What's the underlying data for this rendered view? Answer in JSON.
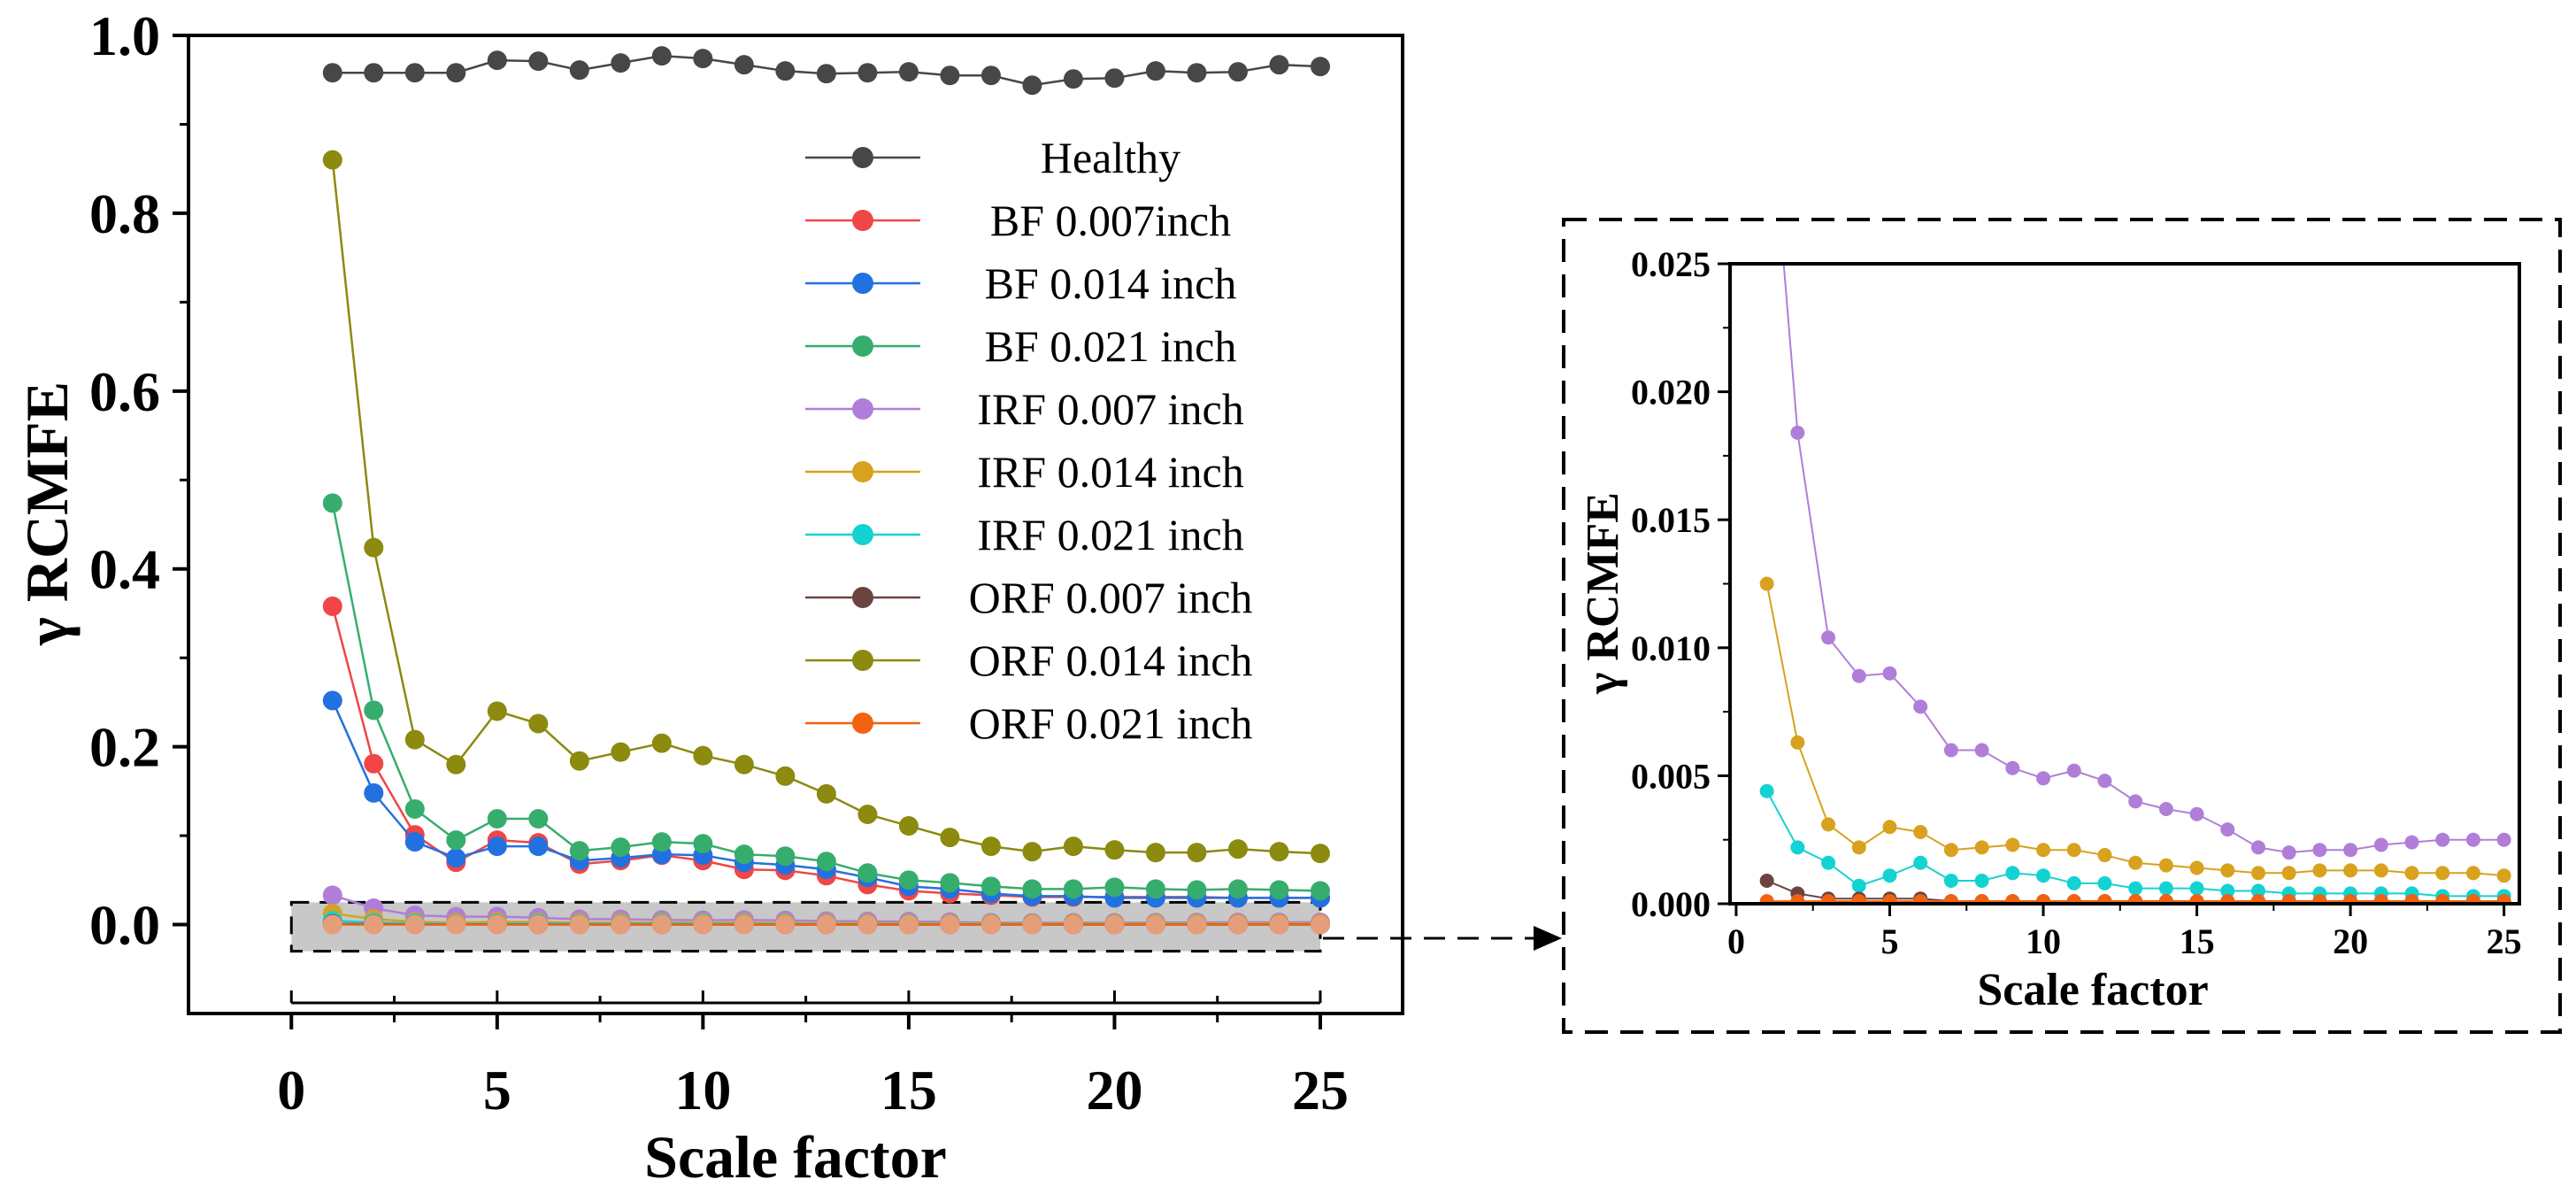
{
  "chart_data": [
    {
      "type": "line",
      "title": "",
      "xlabel": "Scale factor",
      "ylabel": "γ RCMFE",
      "xlim": [
        -2.5,
        27
      ],
      "ylim": [
        -0.1,
        1.0
      ],
      "xticks": [
        "0",
        "5",
        "10",
        "15",
        "20",
        "25"
      ],
      "yticks": [
        "0.0",
        "0.2",
        "0.4",
        "0.6",
        "0.8",
        "1.0"
      ],
      "legend_position": "top-right",
      "x": [
        1,
        2,
        3,
        4,
        5,
        6,
        7,
        8,
        9,
        10,
        11,
        12,
        13,
        14,
        15,
        16,
        17,
        18,
        19,
        20,
        21,
        22,
        23,
        24,
        25
      ],
      "series": [
        {
          "name": "Healthy",
          "color": "#474747",
          "values": [
            0.958,
            0.958,
            0.958,
            0.958,
            0.972,
            0.971,
            0.961,
            0.969,
            0.977,
            0.974,
            0.967,
            0.96,
            0.957,
            0.958,
            0.959,
            0.955,
            0.955,
            0.944,
            0.951,
            0.952,
            0.96,
            0.958,
            0.959,
            0.967,
            0.965
          ]
        },
        {
          "name": "BF 0.007inch",
          "color": "#f04646",
          "values": [
            0.358,
            0.181,
            0.101,
            0.07,
            0.095,
            0.092,
            0.068,
            0.072,
            0.078,
            0.072,
            0.062,
            0.061,
            0.055,
            0.045,
            0.038,
            0.035,
            0.033,
            0.031,
            0.031,
            0.031,
            0.031,
            0.031,
            0.03,
            0.03,
            0.03
          ]
        },
        {
          "name": "BF 0.014 inch",
          "color": "#2271e0",
          "values": [
            0.252,
            0.148,
            0.093,
            0.075,
            0.088,
            0.088,
            0.072,
            0.075,
            0.079,
            0.078,
            0.07,
            0.067,
            0.062,
            0.053,
            0.043,
            0.04,
            0.035,
            0.032,
            0.032,
            0.03,
            0.03,
            0.03,
            0.03,
            0.03,
            0.03
          ]
        },
        {
          "name": "BF 0.021 inch",
          "color": "#36ad6d",
          "values": [
            0.474,
            0.241,
            0.13,
            0.095,
            0.119,
            0.119,
            0.083,
            0.087,
            0.093,
            0.091,
            0.079,
            0.077,
            0.071,
            0.058,
            0.05,
            0.047,
            0.043,
            0.04,
            0.04,
            0.042,
            0.04,
            0.039,
            0.04,
            0.039,
            0.038
          ]
        },
        {
          "name": "IRF 0.007 inch",
          "color": "#b07ed8",
          "values": [
            0.033,
            0.0184,
            0.0104,
            0.0089,
            0.009,
            0.0077,
            0.006,
            0.006,
            0.0053,
            0.0049,
            0.0052,
            0.0048,
            0.004,
            0.0037,
            0.0035,
            0.0029,
            0.0022,
            0.002,
            0.0021,
            0.0021,
            0.0023,
            0.0024,
            0.0025,
            0.0025,
            0.0025
          ]
        },
        {
          "name": "IRF 0.014 inch",
          "color": "#d8a21e",
          "values": [
            0.0125,
            0.0063,
            0.0031,
            0.0022,
            0.003,
            0.0028,
            0.0021,
            0.0022,
            0.0023,
            0.0021,
            0.0021,
            0.0019,
            0.0016,
            0.0015,
            0.0014,
            0.0013,
            0.0012,
            0.0012,
            0.0013,
            0.0013,
            0.0013,
            0.0012,
            0.0012,
            0.0012,
            0.0011
          ]
        },
        {
          "name": "IRF 0.021 inch",
          "color": "#14d2d2",
          "values": [
            0.0044,
            0.0022,
            0.0016,
            0.0007,
            0.0011,
            0.0016,
            0.0009,
            0.0009,
            0.0012,
            0.0011,
            0.0008,
            0.0008,
            0.0006,
            0.0006,
            0.0006,
            0.0005,
            0.0005,
            0.0004,
            0.0004,
            0.0004,
            0.0004,
            0.0004,
            0.0003,
            0.0003,
            0.0003
          ]
        },
        {
          "name": "ORF 0.007 inch",
          "color": "#6b4440",
          "values": [
            0.0009,
            0.0004,
            0.0002,
            0.0002,
            0.0002,
            0.0002,
            0.0001,
            0.0001,
            0.0001,
            0.0001,
            0.0001,
            0.0001,
            0.0001,
            0.0001,
            0.0001,
            0.0001,
            0.0001,
            0.0001,
            0.0001,
            0.0001,
            0.0001,
            0.0001,
            0.0001,
            0.0001,
            0.0001
          ]
        },
        {
          "name": "ORF 0.014 inch",
          "color": "#8c8a0f",
          "values": [
            0.86,
            0.424,
            0.208,
            0.18,
            0.24,
            0.226,
            0.184,
            0.194,
            0.204,
            0.19,
            0.18,
            0.167,
            0.147,
            0.124,
            0.111,
            0.098,
            0.088,
            0.082,
            0.088,
            0.084,
            0.081,
            0.081,
            0.085,
            0.082,
            0.08
          ]
        },
        {
          "name": "ORF 0.021 inch",
          "color": "#f2620f",
          "values": [
            0.0001,
            0.0001,
            0.0001,
            0.0001,
            0.0001,
            0.0001,
            0.0001,
            0.0001,
            0.0001,
            0.0001,
            0.0001,
            0.0001,
            0.0001,
            0.0001,
            0.0001,
            0.0001,
            0.0001,
            0.0001,
            0.0001,
            0.0001,
            0.0001,
            0.0001,
            0.0001,
            0.0001,
            0.0001
          ]
        }
      ],
      "highlight_region": {
        "x_range": [
          0,
          25
        ],
        "y_range": [
          -0.03,
          0.025
        ]
      }
    },
    {
      "type": "line",
      "title": "",
      "xlabel": "Scale factor",
      "ylabel": "γ RCMFE",
      "xlim": [
        -0.2,
        25.5
      ],
      "ylim": [
        0,
        0.025
      ],
      "xticks": [
        "0",
        "5",
        "10",
        "15",
        "20",
        "25"
      ],
      "yticks": [
        "0.000",
        "0.005",
        "0.010",
        "0.015",
        "0.020",
        "0.025"
      ],
      "note": "zoomed view of the shaded region; uses the same series as the main chart"
    }
  ]
}
